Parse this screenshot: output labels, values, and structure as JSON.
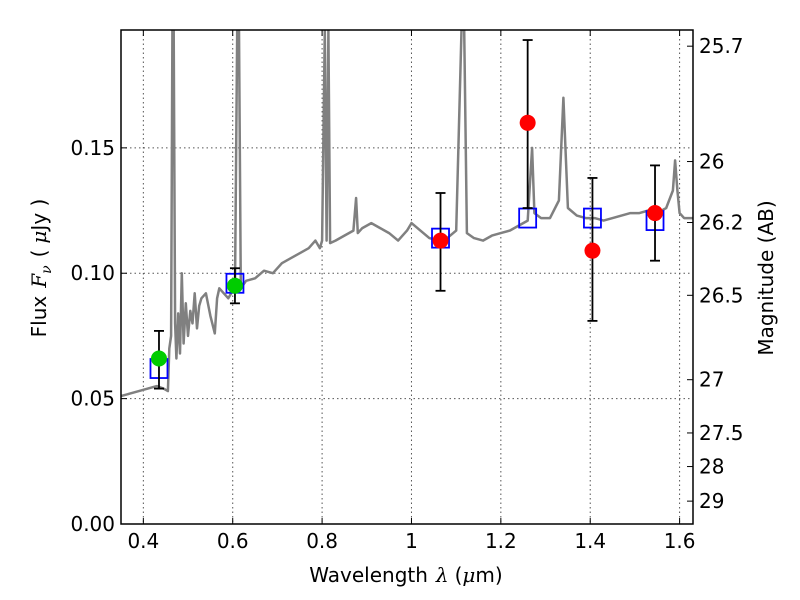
{
  "chart_data": {
    "type": "line",
    "xlabel": "Wavelength",
    "xlabel_symbol": "λ",
    "xlabel_unit_open": "(",
    "xlabel_unit_mu": "μ",
    "xlabel_unit_rest": "m)",
    "ylabel": "Flux",
    "ylabel_symbol": "F",
    "ylabel_sub": "ν",
    "ylabel_unit_open": "(",
    "ylabel_unit_mu": "μ",
    "ylabel_unit_rest": "Jy )",
    "ylabel_right": "Magnitude (AB)",
    "xlim": [
      0.35,
      1.63
    ],
    "ylim": [
      0.0,
      0.197
    ],
    "grid": true,
    "x_ticks": [
      {
        "value": 0.4,
        "label": "0.4"
      },
      {
        "value": 0.6,
        "label": "0.6"
      },
      {
        "value": 0.8,
        "label": "0.8"
      },
      {
        "value": 1.0,
        "label": "1"
      },
      {
        "value": 1.2,
        "label": "1.2"
      },
      {
        "value": 1.4,
        "label": "1.4"
      },
      {
        "value": 1.6,
        "label": "1.6"
      }
    ],
    "y_ticks": [
      {
        "value": 0.0,
        "label": "0.00"
      },
      {
        "value": 0.05,
        "label": "0.05"
      },
      {
        "value": 0.1,
        "label": "0.10"
      },
      {
        "value": 0.15,
        "label": "0.15"
      }
    ],
    "right_ticks": [
      {
        "value": 25.7,
        "label": "25.7"
      },
      {
        "value": 26.0,
        "label": "26"
      },
      {
        "value": 26.2,
        "label": "26.2"
      },
      {
        "value": 26.5,
        "label": "26.5"
      },
      {
        "value": 27.0,
        "label": "27"
      },
      {
        "value": 27.5,
        "label": "27.5"
      },
      {
        "value": 28.0,
        "label": "28"
      },
      {
        "value": 29.0,
        "label": "29"
      }
    ],
    "series": [
      {
        "kind": "spectrum",
        "color": "#808080",
        "points": [
          [
            0.35,
            0.051
          ],
          [
            0.37,
            0.052
          ],
          [
            0.39,
            0.053
          ],
          [
            0.41,
            0.054
          ],
          [
            0.43,
            0.055
          ],
          [
            0.445,
            0.054
          ],
          [
            0.455,
            0.053
          ],
          [
            0.458,
            0.07
          ],
          [
            0.462,
            0.075
          ],
          [
            0.465,
            0.197
          ],
          [
            0.468,
            0.197
          ],
          [
            0.471,
            0.08
          ],
          [
            0.474,
            0.066
          ],
          [
            0.478,
            0.084
          ],
          [
            0.482,
            0.068
          ],
          [
            0.486,
            0.1
          ],
          [
            0.49,
            0.072
          ],
          [
            0.495,
            0.088
          ],
          [
            0.5,
            0.075
          ],
          [
            0.505,
            0.085
          ],
          [
            0.51,
            0.08
          ],
          [
            0.515,
            0.092
          ],
          [
            0.52,
            0.078
          ],
          [
            0.525,
            0.087
          ],
          [
            0.53,
            0.09
          ],
          [
            0.54,
            0.092
          ],
          [
            0.55,
            0.083
          ],
          [
            0.56,
            0.076
          ],
          [
            0.565,
            0.09
          ],
          [
            0.57,
            0.094
          ],
          [
            0.58,
            0.092
          ],
          [
            0.59,
            0.09
          ],
          [
            0.6,
            0.093
          ],
          [
            0.605,
            0.095
          ],
          [
            0.61,
            0.197
          ],
          [
            0.614,
            0.197
          ],
          [
            0.618,
            0.094
          ],
          [
            0.63,
            0.097
          ],
          [
            0.65,
            0.098
          ],
          [
            0.67,
            0.101
          ],
          [
            0.69,
            0.1
          ],
          [
            0.71,
            0.104
          ],
          [
            0.73,
            0.106
          ],
          [
            0.75,
            0.108
          ],
          [
            0.77,
            0.11
          ],
          [
            0.785,
            0.113
          ],
          [
            0.795,
            0.11
          ],
          [
            0.8,
            0.113
          ],
          [
            0.806,
            0.197
          ],
          [
            0.81,
            0.113
          ],
          [
            0.814,
            0.197
          ],
          [
            0.818,
            0.112
          ],
          [
            0.83,
            0.113
          ],
          [
            0.85,
            0.115
          ],
          [
            0.87,
            0.117
          ],
          [
            0.876,
            0.13
          ],
          [
            0.88,
            0.116
          ],
          [
            0.89,
            0.118
          ],
          [
            0.91,
            0.12
          ],
          [
            0.93,
            0.118
          ],
          [
            0.95,
            0.116
          ],
          [
            0.97,
            0.113
          ],
          [
            0.99,
            0.117
          ],
          [
            1.0,
            0.12
          ],
          [
            1.02,
            0.117
          ],
          [
            1.04,
            0.114
          ],
          [
            1.06,
            0.113
          ],
          [
            1.08,
            0.114
          ],
          [
            1.1,
            0.117
          ],
          [
            1.112,
            0.197
          ],
          [
            1.118,
            0.197
          ],
          [
            1.124,
            0.116
          ],
          [
            1.14,
            0.114
          ],
          [
            1.16,
            0.113
          ],
          [
            1.18,
            0.115
          ],
          [
            1.2,
            0.116
          ],
          [
            1.22,
            0.117
          ],
          [
            1.24,
            0.119
          ],
          [
            1.26,
            0.121
          ],
          [
            1.27,
            0.15
          ],
          [
            1.275,
            0.124
          ],
          [
            1.29,
            0.122
          ],
          [
            1.31,
            0.122
          ],
          [
            1.33,
            0.129
          ],
          [
            1.34,
            0.17
          ],
          [
            1.35,
            0.126
          ],
          [
            1.37,
            0.123
          ],
          [
            1.39,
            0.122
          ],
          [
            1.41,
            0.122
          ],
          [
            1.43,
            0.121
          ],
          [
            1.45,
            0.122
          ],
          [
            1.47,
            0.123
          ],
          [
            1.49,
            0.124
          ],
          [
            1.51,
            0.124
          ],
          [
            1.53,
            0.125
          ],
          [
            1.55,
            0.124
          ],
          [
            1.57,
            0.126
          ],
          [
            1.585,
            0.133
          ],
          [
            1.59,
            0.145
          ],
          [
            1.595,
            0.133
          ],
          [
            1.6,
            0.124
          ],
          [
            1.61,
            0.122
          ],
          [
            1.63,
            0.122
          ]
        ]
      },
      {
        "kind": "model_points",
        "marker": "square",
        "color": "#0000ff",
        "x": [
          0.435,
          0.605,
          1.065,
          1.26,
          1.405,
          1.545
        ],
        "y": [
          0.062,
          0.096,
          0.114,
          0.122,
          0.122,
          0.121
        ]
      },
      {
        "kind": "observed_points",
        "marker": "circle",
        "points": [
          {
            "x": 0.435,
            "y": 0.066,
            "err_low": 0.054,
            "err_high": 0.077,
            "color": "#00cc00"
          },
          {
            "x": 0.605,
            "y": 0.095,
            "err_low": 0.088,
            "err_high": 0.102,
            "color": "#00cc00"
          },
          {
            "x": 1.065,
            "y": 0.113,
            "err_low": 0.093,
            "err_high": 0.132,
            "color": "#ff0000"
          },
          {
            "x": 1.26,
            "y": 0.16,
            "err_low": 0.126,
            "err_high": 0.193,
            "color": "#ff0000"
          },
          {
            "x": 1.405,
            "y": 0.109,
            "err_low": 0.081,
            "err_high": 0.138,
            "color": "#ff0000"
          },
          {
            "x": 1.545,
            "y": 0.124,
            "err_low": 0.105,
            "err_high": 0.143,
            "color": "#ff0000"
          }
        ]
      }
    ]
  }
}
